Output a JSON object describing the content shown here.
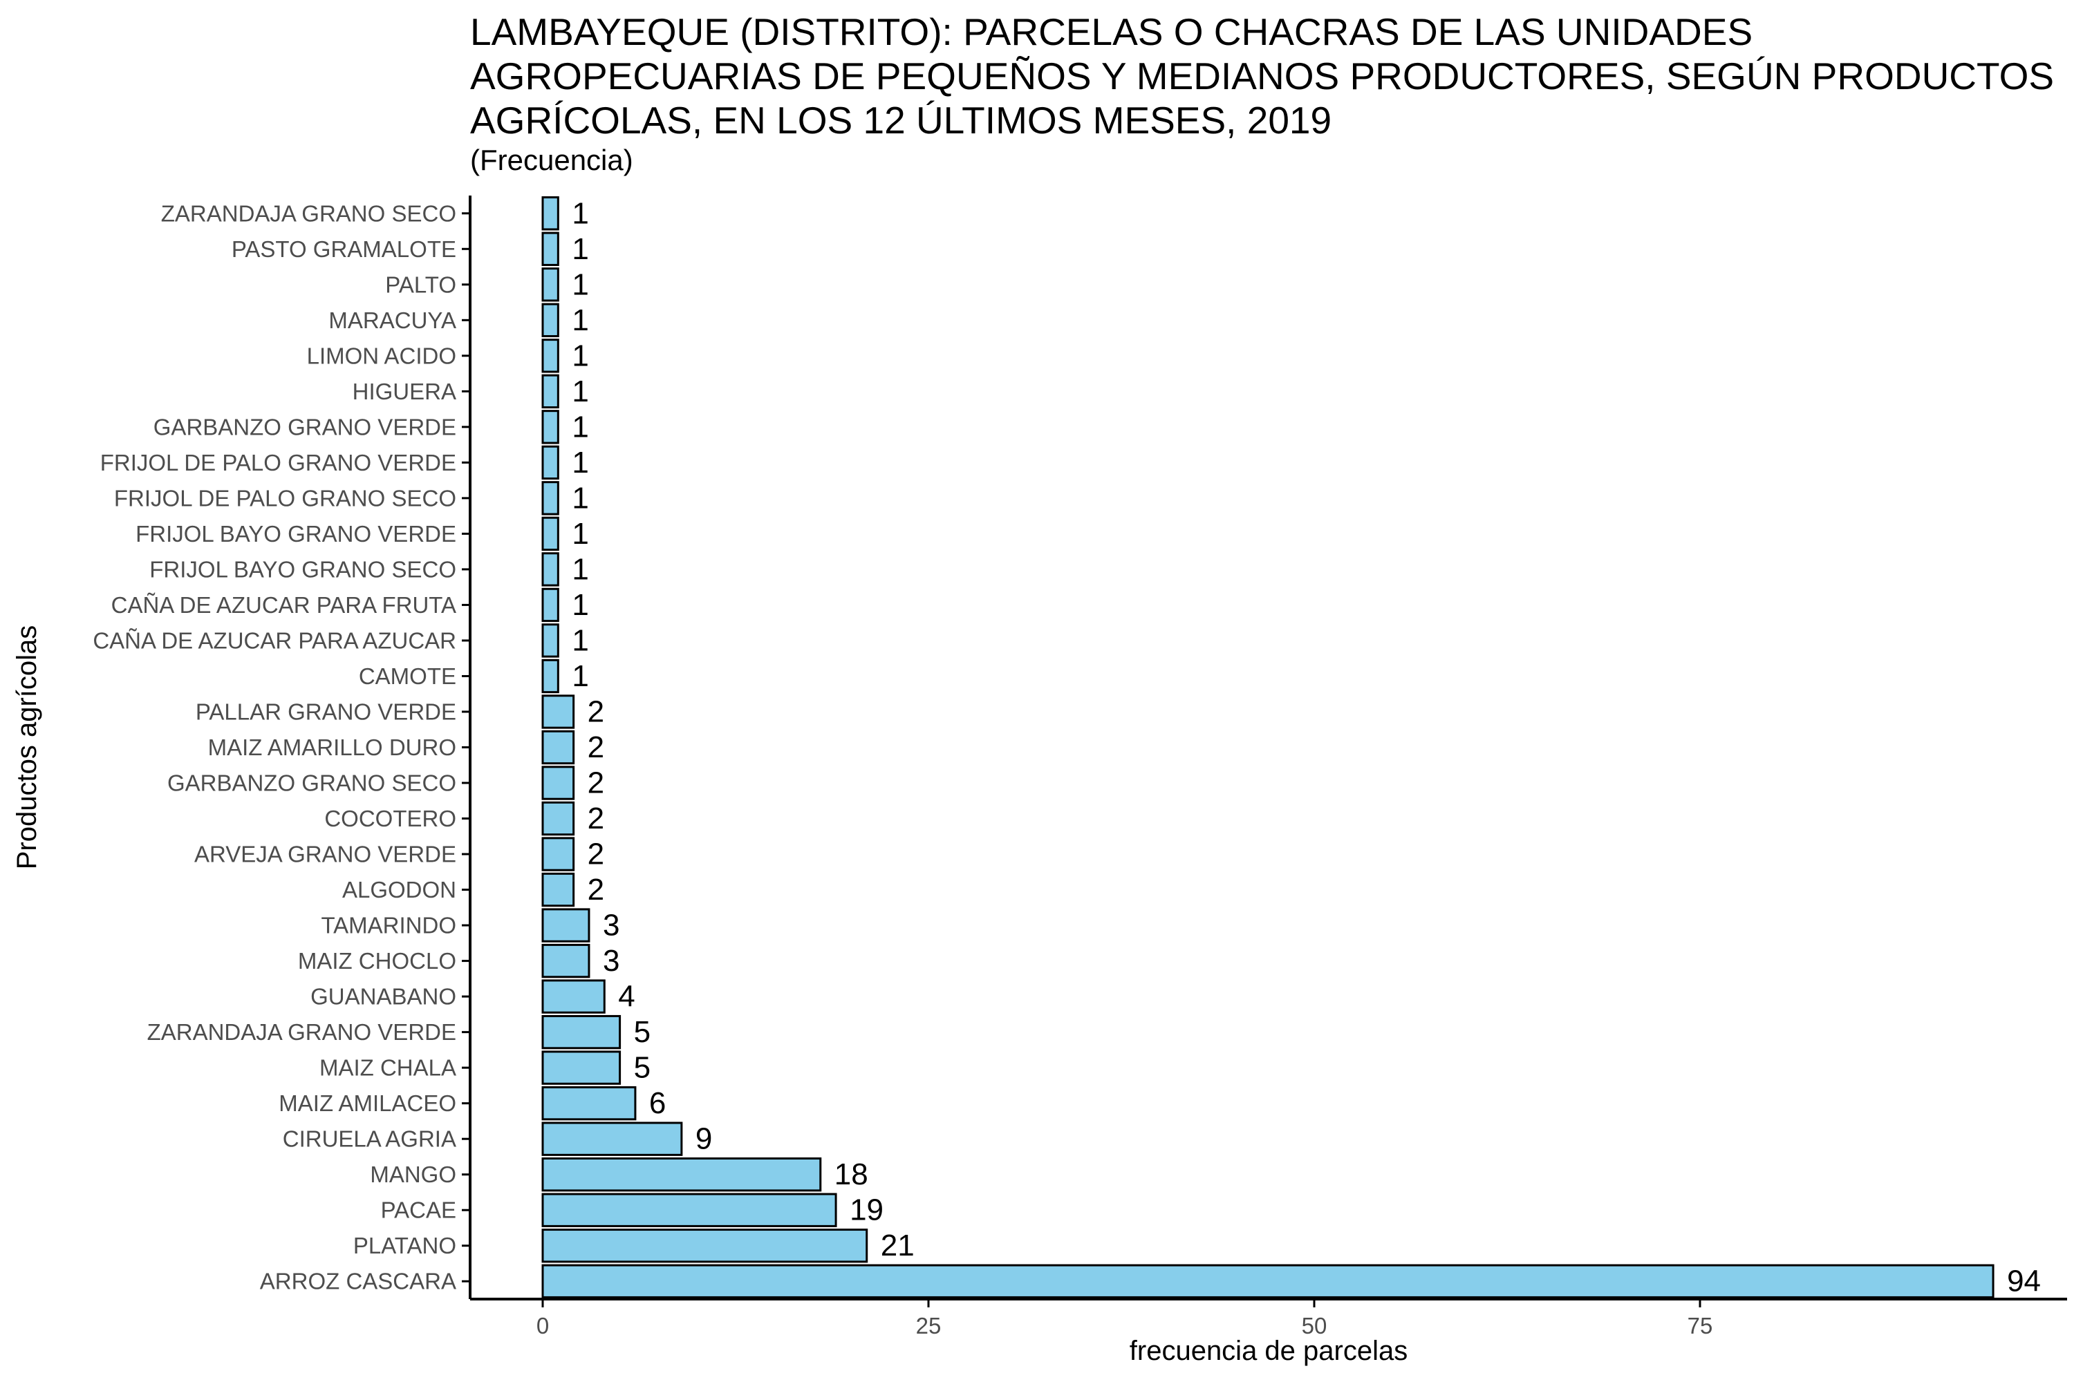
{
  "chart_data": {
    "type": "bar",
    "orientation": "horizontal",
    "title": "LAMBAYEQUE (DISTRITO): PARCELAS O CHACRAS DE LAS UNIDADES\nAGROPECUARIAS DE PEQUEÑOS Y MEDIANOS PRODUCTORES, SEGÚN PRODUCTOS\nAGRÍCOLAS, EN LOS 12 ÚLTIMOS MESES, 2019",
    "subtitle": "(Frecuencia)",
    "xlabel": "frecuencia de parcelas",
    "ylabel": "Productos agrícolas",
    "xlim": [
      0,
      97.5
    ],
    "xticks": [
      0,
      25,
      50,
      75
    ],
    "grid": false,
    "bar_color": "#87CEEB",
    "bar_edge_color": "#000000",
    "categories": [
      "ARROZ CASCARA",
      "PLATANO",
      "PACAE",
      "MANGO",
      "CIRUELA AGRIA",
      "MAIZ AMILACEO",
      "MAIZ CHALA",
      "ZARANDAJA GRANO VERDE",
      "GUANABANO",
      "MAIZ CHOCLO",
      "TAMARINDO",
      "ALGODON",
      "ARVEJA GRANO VERDE",
      "COCOTERO",
      "GARBANZO GRANO SECO",
      "MAIZ AMARILLO DURO",
      "PALLAR GRANO VERDE",
      "CAMOTE",
      "CAÑA DE AZUCAR PARA AZUCAR",
      "CAÑA DE AZUCAR PARA FRUTA",
      "FRIJOL BAYO GRANO SECO",
      "FRIJOL BAYO GRANO VERDE",
      "FRIJOL DE PALO GRANO SECO",
      "FRIJOL DE PALO GRANO VERDE",
      "GARBANZO GRANO VERDE",
      "HIGUERA",
      "LIMON ACIDO",
      "MARACUYA",
      "PALTO",
      "PASTO GRAMALOTE",
      "ZARANDAJA GRANO SECO"
    ],
    "values": [
      94,
      21,
      19,
      18,
      9,
      6,
      5,
      5,
      4,
      3,
      3,
      2,
      2,
      2,
      2,
      2,
      2,
      1,
      1,
      1,
      1,
      1,
      1,
      1,
      1,
      1,
      1,
      1,
      1,
      1,
      1
    ]
  }
}
